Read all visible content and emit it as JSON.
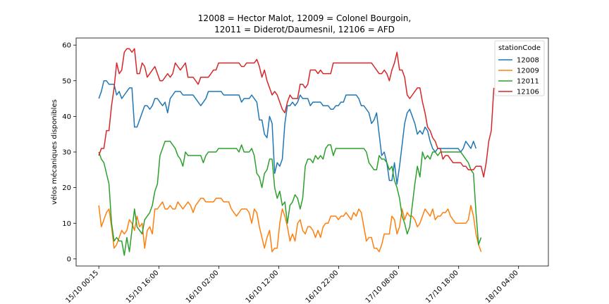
{
  "chart_data": {
    "type": "line",
    "title_lines": [
      "12008 = Hector Malot, 12009 = Colonel Bourgoin,",
      "12011 = Diderot/Daumesnil, 12106 = AFD"
    ],
    "ylabel": "vélos mécaniques disponibles",
    "xlabel": "",
    "ylim": [
      -2,
      62
    ],
    "yticks": [
      0,
      10,
      20,
      30,
      40,
      50,
      60
    ],
    "xlim": [
      -8.9,
      176.4
    ],
    "xtick_labels": [
      "15/10 00:15",
      "15/10 16:00",
      "16/10 02:00",
      "16/10 12:00",
      "16/10 22:00",
      "17/10 08:00",
      "17/10 18:00",
      "18/10 04:00"
    ],
    "xtick_positions": [
      0,
      23.6,
      47.1,
      70.6,
      94.1,
      117.6,
      141.2,
      164.7
    ],
    "x_step": 1,
    "legend": {
      "title": "stationCode",
      "placement": "top-right"
    },
    "series": [
      {
        "name": "12008",
        "color": "#1f77b4",
        "values": [
          45,
          47,
          50,
          50,
          49,
          49,
          49,
          46,
          47,
          45,
          46,
          47,
          48,
          48,
          37,
          37,
          39,
          41,
          43,
          43,
          42,
          43,
          45,
          45,
          44,
          43,
          44,
          41,
          45,
          46,
          47,
          47,
          47,
          46,
          46,
          46,
          46,
          46,
          45,
          44,
          43,
          44,
          45,
          47,
          47,
          47,
          47,
          47,
          47,
          46,
          46,
          46,
          46,
          46,
          46,
          46,
          44,
          45,
          45,
          45,
          46,
          45,
          44,
          39,
          39,
          35,
          34,
          40,
          38,
          24,
          27,
          26,
          28,
          38,
          43,
          43,
          44,
          43,
          44,
          46,
          45,
          45,
          45,
          43,
          44,
          44,
          44,
          44,
          43,
          43,
          43,
          42,
          42,
          43,
          43,
          44,
          44,
          46,
          46,
          46,
          46,
          46,
          45,
          43,
          43,
          42,
          41,
          38,
          39,
          41,
          35,
          29,
          30,
          27,
          22,
          22,
          27,
          21,
          26,
          32,
          38,
          41,
          42,
          40,
          38,
          35,
          36,
          35,
          37,
          36,
          33,
          31,
          30,
          31,
          31,
          31,
          31,
          31,
          31,
          31,
          31,
          31,
          30,
          31,
          33,
          32,
          31,
          33,
          31
        ]
      },
      {
        "name": "12009",
        "color": "#ff7f0e",
        "values": [
          15,
          9,
          11,
          13,
          14,
          9,
          3,
          4,
          6,
          8,
          7,
          8,
          11,
          10,
          8,
          12,
          9,
          10,
          3,
          8,
          9,
          7,
          14,
          14,
          15,
          16,
          14,
          14,
          15,
          14,
          14,
          16,
          15,
          14,
          15,
          16,
          15,
          13,
          15,
          16,
          17,
          17,
          16,
          16,
          16,
          16,
          17,
          17,
          17,
          16,
          16,
          16,
          14,
          13,
          12,
          13,
          14,
          14,
          14,
          13,
          10,
          14,
          13,
          9,
          6,
          3,
          6,
          8,
          2,
          3,
          3,
          10,
          14,
          12,
          9,
          5,
          7,
          5,
          10,
          11,
          8,
          7,
          9,
          9,
          8,
          6,
          8,
          6,
          9,
          10,
          10,
          12,
          12,
          12,
          11,
          12,
          12,
          13,
          12,
          11,
          13,
          12,
          14,
          13,
          9,
          5,
          6,
          6,
          3,
          3,
          2,
          4,
          7,
          7,
          7,
          12,
          11,
          7,
          9,
          14,
          11,
          13,
          12,
          12,
          11,
          9,
          10,
          12,
          14,
          13,
          12,
          14,
          11,
          12,
          12,
          13,
          13,
          14,
          12,
          11,
          10,
          10,
          10,
          10,
          10,
          11,
          15,
          12,
          7,
          4,
          2
        ]
      },
      {
        "name": "12011",
        "color": "#2ca02c",
        "values": [
          30,
          28,
          27,
          24,
          21,
          10,
          5,
          6,
          5,
          5,
          1,
          6,
          2,
          8,
          14,
          9,
          8,
          7,
          11,
          12,
          13,
          15,
          19,
          21,
          29,
          31,
          33,
          33,
          33,
          32,
          31,
          29,
          28,
          26,
          30,
          29,
          29,
          29,
          29,
          29,
          29,
          27,
          29,
          30,
          30,
          30,
          30,
          31,
          31,
          31,
          31,
          31,
          31,
          31,
          31,
          30,
          32,
          30,
          30,
          30,
          31,
          29,
          24,
          23,
          20,
          24,
          25,
          28,
          28,
          20,
          17,
          19,
          15,
          16,
          10,
          15,
          16,
          18,
          17,
          14,
          17,
          26,
          28,
          28,
          27,
          29,
          28,
          29,
          28,
          31,
          32,
          32,
          29,
          31,
          31,
          31,
          31,
          31,
          31,
          31,
          31,
          31,
          31,
          31,
          31,
          30,
          27,
          26,
          25,
          25,
          29,
          28,
          28,
          27,
          25,
          26,
          22,
          20,
          17,
          12,
          10,
          7,
          9,
          15,
          21,
          26,
          23,
          30,
          28,
          29,
          28,
          30,
          30,
          29,
          30,
          30,
          30,
          30,
          30,
          30,
          30,
          30,
          30,
          29,
          28,
          27,
          25,
          24,
          13,
          4,
          6
        ]
      },
      {
        "name": "12106",
        "color": "#d62728",
        "values": [
          29,
          31,
          31,
          36,
          36,
          43,
          48,
          55,
          52,
          53,
          58,
          59,
          59,
          58,
          59,
          52,
          52,
          55,
          54,
          51,
          52,
          53,
          54,
          52,
          50,
          50,
          51,
          52,
          51,
          52,
          55,
          54,
          53,
          54,
          55,
          51,
          51,
          51,
          50,
          49,
          51,
          51,
          51,
          51,
          52,
          53,
          53,
          55,
          55,
          55,
          55,
          55,
          55,
          55,
          55,
          55,
          54,
          54,
          55,
          55,
          55,
          55,
          56,
          54,
          51,
          53,
          50,
          48,
          46,
          47,
          46,
          44,
          42,
          41,
          44,
          46,
          45,
          45,
          45,
          49,
          49,
          48,
          49,
          53,
          53,
          53,
          52,
          53,
          52,
          52,
          52,
          52,
          55,
          55,
          55,
          55,
          55,
          55,
          55,
          55,
          55,
          55,
          55,
          55,
          55,
          55,
          55,
          55,
          54,
          53,
          52,
          52,
          53,
          52,
          50,
          53,
          55,
          58,
          53,
          53,
          51,
          46,
          45,
          46,
          47,
          48,
          48,
          44,
          41,
          37,
          36,
          34,
          33,
          31,
          31,
          28,
          29,
          29,
          28,
          27,
          27,
          27,
          27,
          26,
          26,
          25,
          25,
          25,
          26,
          26,
          26,
          23,
          27,
          33,
          36,
          48
        ]
      }
    ]
  }
}
